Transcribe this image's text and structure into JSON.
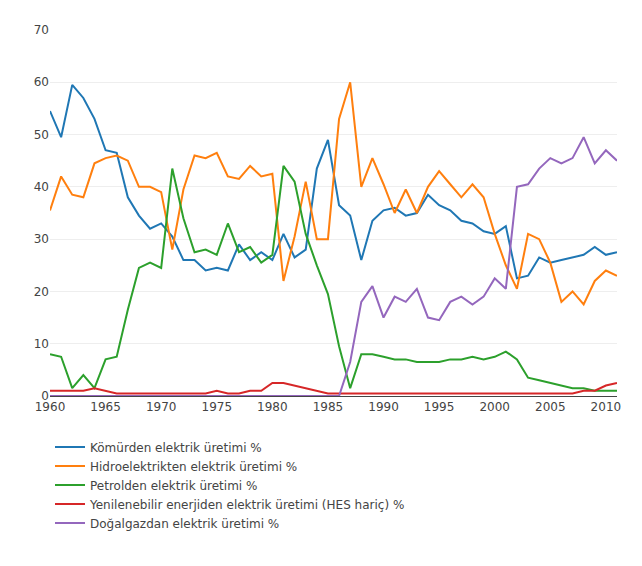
{
  "chart_data": {
    "type": "line",
    "x": [
      1960,
      1961,
      1962,
      1963,
      1964,
      1965,
      1966,
      1967,
      1968,
      1969,
      1970,
      1971,
      1972,
      1973,
      1974,
      1975,
      1976,
      1977,
      1978,
      1979,
      1980,
      1981,
      1982,
      1983,
      1984,
      1985,
      1986,
      1987,
      1988,
      1989,
      1990,
      1991,
      1992,
      1993,
      1994,
      1995,
      1996,
      1997,
      1998,
      1999,
      2000,
      2001,
      2002,
      2003,
      2004,
      2005,
      2006,
      2007,
      2008,
      2009,
      2010,
      2011
    ],
    "series": [
      {
        "name": "Kömürden elektrik üretimi %",
        "values": [
          54.5,
          49.5,
          59.5,
          57.0,
          53.0,
          47.0,
          46.5,
          38.0,
          34.5,
          32.0,
          33.0,
          30.5,
          26.0,
          26.0,
          24.0,
          24.5,
          24.0,
          29.0,
          26.0,
          27.5,
          26.0,
          31.0,
          26.5,
          28.0,
          43.5,
          49.0,
          36.5,
          34.5,
          26.0,
          33.5,
          35.5,
          36.0,
          34.5,
          35.0,
          38.5,
          36.5,
          35.5,
          33.5,
          33.0,
          31.5,
          31.0,
          32.5,
          22.5,
          23.0,
          26.5,
          25.5,
          26.0,
          26.5,
          27.0,
          28.5,
          27.0,
          27.5
        ]
      },
      {
        "name": "Hidroelektrikten elektrik üretimi %",
        "values": [
          35.5,
          42.0,
          38.5,
          38.0,
          44.5,
          45.5,
          46.0,
          45.0,
          40.0,
          40.0,
          39.0,
          28.0,
          39.5,
          46.0,
          45.5,
          46.5,
          42.0,
          41.5,
          44.0,
          42.0,
          42.5,
          22.0,
          30.5,
          41.0,
          30.0,
          30.0,
          53.0,
          60.0,
          40.0,
          45.5,
          40.5,
          35.0,
          39.5,
          35.0,
          40.0,
          43.0,
          40.5,
          38.0,
          40.5,
          38.0,
          31.0,
          25.0,
          20.5,
          31.0,
          30.0,
          25.5,
          18.0,
          20.0,
          17.5,
          22.0,
          24.0,
          23.0
        ]
      },
      {
        "name": "Petrolden elektrik üretimi %",
        "values": [
          8.0,
          7.5,
          1.5,
          4.0,
          1.5,
          7.0,
          7.5,
          16.5,
          24.5,
          25.5,
          24.5,
          43.5,
          34.0,
          27.5,
          28.0,
          27.0,
          33.0,
          27.5,
          28.5,
          25.5,
          27.0,
          44.0,
          41.0,
          31.0,
          25.0,
          19.5,
          9.5,
          1.5,
          8.0,
          8.0,
          7.5,
          7.0,
          7.0,
          6.5,
          6.5,
          6.5,
          7.0,
          7.0,
          7.5,
          7.0,
          7.5,
          8.5,
          7.0,
          3.5,
          3.0,
          2.5,
          2.0,
          1.5,
          1.5,
          1.0,
          1.0,
          1.0
        ]
      },
      {
        "name": "Yenilenebilir enerjiden elektrik üretimi (HES hariç) %",
        "values": [
          1.0,
          1.0,
          1.0,
          1.0,
          1.5,
          1.0,
          0.5,
          0.5,
          0.5,
          0.5,
          0.5,
          0.5,
          0.5,
          0.5,
          0.5,
          1.0,
          0.5,
          0.5,
          1.0,
          1.0,
          2.5,
          2.5,
          2.0,
          1.5,
          1.0,
          0.5,
          0.5,
          0.5,
          0.5,
          0.5,
          0.5,
          0.5,
          0.5,
          0.5,
          0.5,
          0.5,
          0.5,
          0.5,
          0.5,
          0.5,
          0.5,
          0.5,
          0.5,
          0.5,
          0.5,
          0.5,
          0.5,
          0.5,
          1.0,
          1.0,
          2.0,
          2.5
        ]
      },
      {
        "name": "Doğalgazdan elektrik üretimi %",
        "values": [
          0.0,
          0.0,
          0.0,
          0.0,
          0.0,
          0.0,
          0.0,
          0.0,
          0.0,
          0.0,
          0.0,
          0.0,
          0.0,
          0.0,
          0.0,
          0.0,
          0.0,
          0.0,
          0.0,
          0.0,
          0.0,
          0.0,
          0.0,
          0.0,
          0.0,
          0.0,
          0.0,
          6.5,
          18.0,
          21.0,
          15.0,
          19.0,
          18.0,
          20.5,
          15.0,
          14.5,
          18.0,
          19.0,
          17.5,
          19.0,
          22.5,
          20.5,
          40.0,
          40.5,
          43.5,
          45.5,
          44.5,
          45.5,
          49.5,
          44.5,
          47.0,
          45.0
        ]
      }
    ],
    "xlim": [
      1960,
      2011
    ],
    "xticks": [
      1960,
      1965,
      1970,
      1975,
      1980,
      1985,
      1990,
      1995,
      2000,
      2005,
      2010
    ],
    "ylim": [
      0,
      70
    ],
    "yticks": [
      0,
      10,
      20,
      30,
      40,
      50,
      60,
      70
    ],
    "grid": "y",
    "legend": "bottom"
  }
}
